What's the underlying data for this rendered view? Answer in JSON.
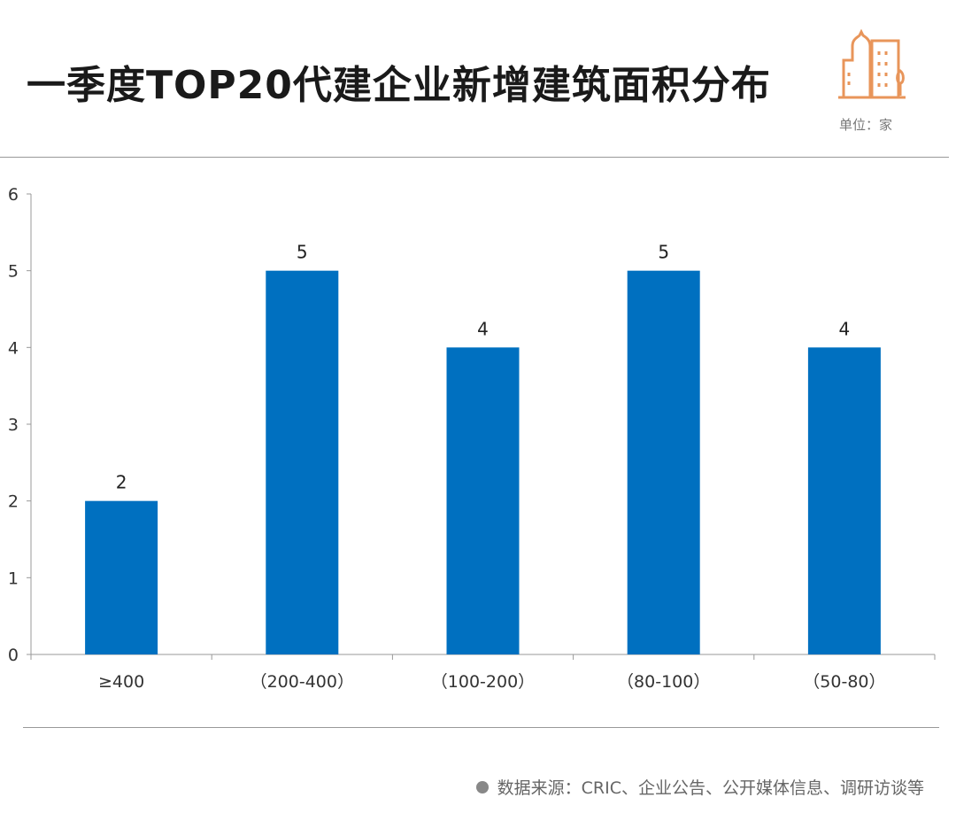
{
  "header": {
    "title": "一季度TOP20代建企业新增建筑面积分布",
    "unit": "单位：家"
  },
  "footer": {
    "source": "数据来源：CRIC、企业公告、公开媒体信息、调研访谈等"
  },
  "colors": {
    "bar": "#0070c0",
    "icon": "#e8955a"
  },
  "chart_data": {
    "type": "bar",
    "title": "一季度TOP20代建企业新增建筑面积分布",
    "categories": [
      "≥400",
      "（200-400）",
      "（100-200）",
      "（80-100）",
      "（50-80）"
    ],
    "values": [
      2,
      5,
      4,
      5,
      4
    ],
    "ylim": [
      0,
      6
    ],
    "yticks": [
      0,
      1,
      2,
      3,
      4,
      5,
      6
    ],
    "xlabel": "",
    "ylabel": "单位：家",
    "grid": false
  }
}
